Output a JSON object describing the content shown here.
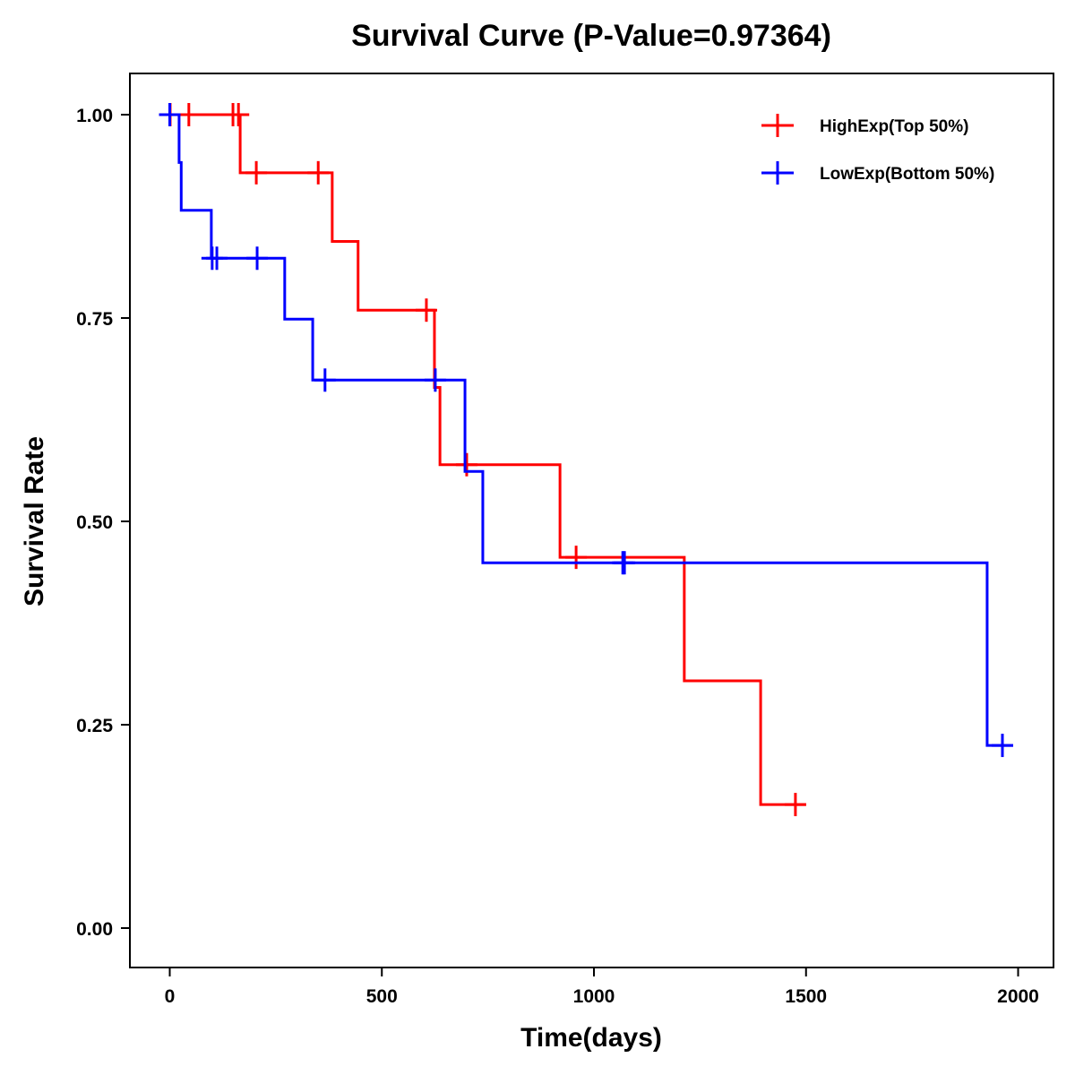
{
  "chart_data": {
    "type": "line",
    "subtype": "kaplan-meier step",
    "title": "Survival Curve (P-Value=0.97364)",
    "xlabel": "Time(days)",
    "ylabel": "Survival Rate",
    "xlim": [
      -90,
      2090
    ],
    "ylim": [
      -0.05,
      1.05
    ],
    "x_ticks": [
      0,
      500,
      1000,
      1500,
      2000
    ],
    "x_tick_labels": [
      "0",
      "500",
      "1000",
      "1500",
      "2000"
    ],
    "y_ticks": [
      0,
      0.25,
      0.5,
      0.75,
      1.0
    ],
    "y_tick_labels": [
      "0.00",
      "0.25",
      "0.50",
      "0.75",
      "1.00"
    ],
    "grid": false,
    "legend_position": "top-right",
    "series": [
      {
        "name": "HighExp(Top 50%)",
        "color": "#ff0000",
        "steps": [
          {
            "time": 0,
            "survival": 1.0
          },
          {
            "time": 166,
            "survival": 0.9286
          },
          {
            "time": 383,
            "survival": 0.8442
          },
          {
            "time": 444,
            "survival": 0.7597
          },
          {
            "time": 624,
            "survival": 0.6647
          },
          {
            "time": 637,
            "survival": 0.5697
          },
          {
            "time": 920,
            "survival": 0.4558
          },
          {
            "time": 1213,
            "survival": 0.3039
          },
          {
            "time": 1393,
            "survival": 0.1519
          }
        ],
        "end_time": 1500,
        "censored": [
          {
            "time": 1,
            "survival": 1.0
          },
          {
            "time": 45,
            "survival": 1.0
          },
          {
            "time": 149,
            "survival": 1.0
          },
          {
            "time": 162,
            "survival": 1.0
          },
          {
            "time": 204,
            "survival": 0.9286
          },
          {
            "time": 350,
            "survival": 0.9286
          },
          {
            "time": 605,
            "survival": 0.7597
          },
          {
            "time": 700,
            "survival": 0.5697
          },
          {
            "time": 958,
            "survival": 0.4558
          },
          {
            "time": 1475,
            "survival": 0.1519
          }
        ]
      },
      {
        "name": "LowExp(Bottom 50%)",
        "color": "#0000ff",
        "steps": [
          {
            "time": -10,
            "survival": 1.0
          },
          {
            "time": 22,
            "survival": 0.9412
          },
          {
            "time": 27,
            "survival": 0.8824
          },
          {
            "time": 98,
            "survival": 0.8235
          },
          {
            "time": 271,
            "survival": 0.7486
          },
          {
            "time": 337,
            "survival": 0.6737
          },
          {
            "time": 696,
            "survival": 0.5614
          },
          {
            "time": 738,
            "survival": 0.4491
          },
          {
            "time": 1927,
            "survival": 0.2246
          }
        ],
        "end_time": 1988,
        "censored": [
          {
            "time": 0,
            "survival": 1.0
          },
          {
            "time": 100,
            "survival": 0.8235
          },
          {
            "time": 111,
            "survival": 0.8235
          },
          {
            "time": 206,
            "survival": 0.8235
          },
          {
            "time": 366,
            "survival": 0.6737
          },
          {
            "time": 626,
            "survival": 0.6737
          },
          {
            "time": 1068,
            "survival": 0.4491
          },
          {
            "time": 1072,
            "survival": 0.4491
          },
          {
            "time": 1963,
            "survival": 0.2246
          }
        ]
      }
    ]
  }
}
